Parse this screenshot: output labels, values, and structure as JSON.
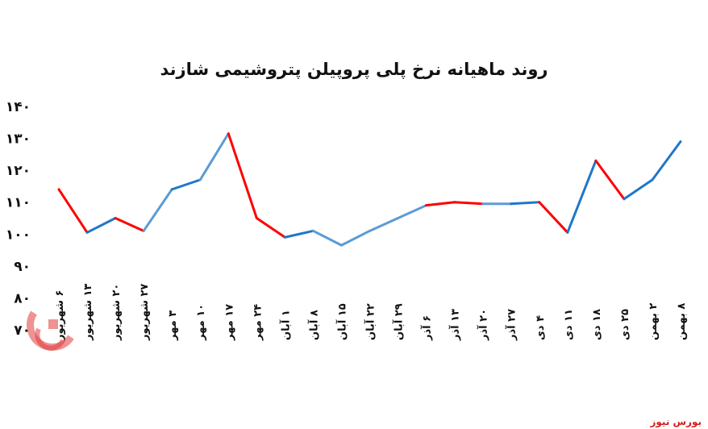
{
  "chart_data": {
    "type": "line",
    "title": "روند ماهیانه نرخ پلی پروپیلن پتروشیمی شازند",
    "xlabel": "",
    "ylabel": "",
    "ylim": [
      70,
      140
    ],
    "yticks": [
      "۷۰",
      "۸۰",
      "۹۰",
      "۱۰۰",
      "۱۱۰",
      "۱۲۰",
      "۱۳۰",
      "۱۴۰"
    ],
    "grid": false,
    "legend": "none",
    "categories": [
      "۶ شهریور",
      "۱۳ شهریور",
      "۲۰ شهریور",
      "۲۷ شهریور",
      "۳ مهر",
      "۱۰ مهر",
      "۱۷ مهر",
      "۲۴ مهر",
      "۱ آبان",
      "۸ آبان",
      "۱۵ آبان",
      "۲۲ آبان",
      "۲۹ آبان",
      "۶ آذر",
      "۱۳ آذر",
      "۲۰ آذر",
      "۲۷ آذر",
      "۴ دی",
      "۱۱ دی",
      "۱۸ دی",
      "۲۵ دی",
      "۲ بهمن",
      "۸ بهمن"
    ],
    "values": [
      114,
      100.5,
      105,
      101,
      114,
      117,
      131.5,
      105,
      99,
      101,
      96.5,
      101,
      105,
      109,
      110,
      109.5,
      109.5,
      110,
      100.5,
      123,
      111,
      117,
      129
    ],
    "segment_colors": [
      "#ff0000",
      "#1f77c8",
      "#ff0000",
      "#5b9bd5",
      "#1f77c8",
      "#5b9bd5",
      "#ff0000",
      "#ff0000",
      "#1f77c8",
      "#5b9bd5",
      "#5b9bd5",
      "#5b9bd5",
      "#5b9bd5",
      "#ff0000",
      "#ff0000",
      "#5b9bd5",
      "#1f77c8",
      "#ff0000",
      "#1f77c8",
      "#ff0000",
      "#1f77c8",
      "#1f77c8"
    ]
  },
  "brand": "بورس نیوز"
}
